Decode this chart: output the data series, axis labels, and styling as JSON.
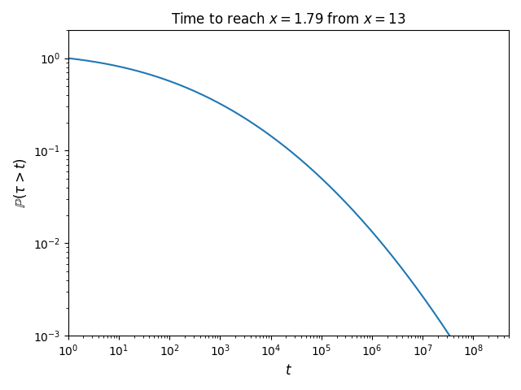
{
  "title": "Time to reach $x = 1.79$ from $x = 13$",
  "xlabel": "$t$",
  "ylabel": "$\\mathbb{P}(\\tau > t)$",
  "xlim": [
    1,
    500000000.0
  ],
  "ylim": [
    0.001,
    2
  ],
  "line_color": "#1f77b4",
  "line_width": 1.5,
  "x_start": 13.0,
  "x_target": 1.79,
  "alpha": 0.5,
  "t_scale": 180.0,
  "n_points": 2000
}
